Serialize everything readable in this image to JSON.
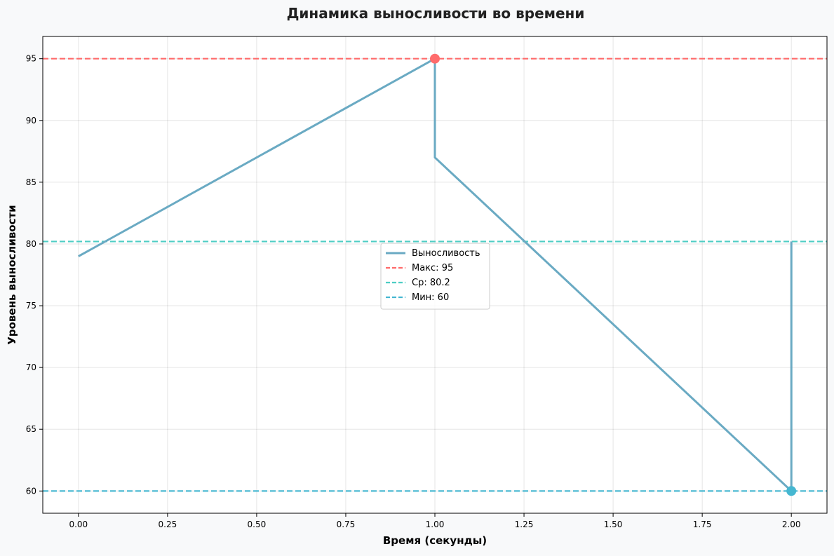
{
  "chart_data": {
    "type": "line",
    "title": "Динамика выносливости во времени",
    "xlabel": "Время (секунды)",
    "ylabel": "Уровень выносливости",
    "xlim": [
      -0.1,
      2.1
    ],
    "ylim": [
      58.2,
      96.8
    ],
    "x_ticks": [
      0.0,
      0.25,
      0.5,
      0.75,
      1.0,
      1.25,
      1.5,
      1.75,
      2.0
    ],
    "x_tick_labels": [
      "0.00",
      "0.25",
      "0.50",
      "0.75",
      "1.00",
      "1.25",
      "1.50",
      "1.75",
      "2.00"
    ],
    "y_ticks": [
      60,
      65,
      70,
      75,
      80,
      85,
      90,
      95
    ],
    "y_tick_labels": [
      "60",
      "65",
      "70",
      "75",
      "80",
      "85",
      "90",
      "95"
    ],
    "grid": true,
    "legend_position": "center",
    "series": [
      {
        "name": "Выносливость",
        "color": "#6aaac3",
        "points": [
          [
            0,
            79
          ],
          [
            1,
            95
          ],
          [
            1,
            87
          ],
          [
            2,
            60
          ],
          [
            2,
            80.2
          ]
        ]
      }
    ],
    "reference_lines": [
      {
        "name": "Макс: 95",
        "value": 95,
        "color": "#ff6b6b"
      },
      {
        "name": "Ср: 80.2",
        "value": 80.2,
        "color": "#4ecdc4"
      },
      {
        "name": "Мин: 60",
        "value": 60,
        "color": "#45b7d1"
      }
    ],
    "markers": [
      {
        "x": 1,
        "y": 95,
        "color": "#ff6b6b"
      },
      {
        "x": 2,
        "y": 60,
        "color": "#45b7d1"
      }
    ]
  }
}
